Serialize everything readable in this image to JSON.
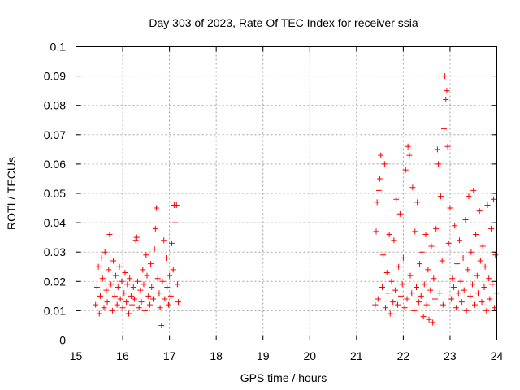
{
  "chart_data": {
    "type": "scatter",
    "title": "Day 303 of 2023, Rate Of TEC Index for receiver ssia",
    "xlabel": "GPS time / hours",
    "ylabel": "ROTI / TECUs",
    "xlim": [
      15,
      24
    ],
    "ylim": [
      0,
      0.1
    ],
    "x_ticks": [
      "15",
      "16",
      "17",
      "18",
      "19",
      "20",
      "21",
      "22",
      "23",
      "24"
    ],
    "y_ticks": [
      "0",
      "0.01",
      "0.02",
      "0.03",
      "0.04",
      "0.05",
      "0.06",
      "0.07",
      "0.08",
      "0.09",
      "0.1"
    ],
    "grid": true,
    "marker": "plus",
    "color": "#ff0000",
    "series": [
      {
        "points": [
          [
            15.42,
            0.012
          ],
          [
            15.45,
            0.018
          ],
          [
            15.48,
            0.025
          ],
          [
            15.5,
            0.009
          ],
          [
            15.52,
            0.015
          ],
          [
            15.55,
            0.028
          ],
          [
            15.57,
            0.021
          ],
          [
            15.6,
            0.011
          ],
          [
            15.62,
            0.03
          ],
          [
            15.65,
            0.017
          ],
          [
            15.67,
            0.013
          ],
          [
            15.7,
            0.024
          ],
          [
            15.72,
            0.036
          ],
          [
            15.75,
            0.019
          ],
          [
            15.78,
            0.01
          ],
          [
            15.8,
            0.027
          ],
          [
            15.83,
            0.015
          ],
          [
            15.85,
            0.022
          ],
          [
            15.88,
            0.012
          ],
          [
            15.9,
            0.018
          ],
          [
            15.93,
            0.025
          ],
          [
            15.95,
            0.014
          ],
          [
            15.98,
            0.02
          ],
          [
            16.0,
            0.011
          ],
          [
            16.03,
            0.016
          ],
          [
            16.05,
            0.023
          ],
          [
            16.08,
            0.013
          ],
          [
            16.1,
            0.019
          ],
          [
            16.13,
            0.009
          ],
          [
            16.15,
            0.021
          ],
          [
            16.18,
            0.015
          ],
          [
            16.2,
            0.012
          ],
          [
            16.23,
            0.018
          ],
          [
            16.25,
            0.014
          ],
          [
            16.28,
            0.034
          ],
          [
            16.3,
            0.035
          ],
          [
            16.32,
            0.02
          ],
          [
            16.35,
            0.011
          ],
          [
            16.38,
            0.017
          ],
          [
            16.4,
            0.013
          ],
          [
            16.43,
            0.024
          ],
          [
            16.45,
            0.019
          ],
          [
            16.48,
            0.01
          ],
          [
            16.5,
            0.029
          ],
          [
            16.52,
            0.022
          ],
          [
            16.55,
            0.015
          ],
          [
            16.58,
            0.012
          ],
          [
            16.6,
            0.026
          ],
          [
            16.62,
            0.018
          ],
          [
            16.65,
            0.014
          ],
          [
            16.68,
            0.031
          ],
          [
            16.7,
            0.038
          ],
          [
            16.72,
            0.045
          ],
          [
            16.75,
            0.021
          ],
          [
            16.78,
            0.016
          ],
          [
            16.8,
            0.011
          ],
          [
            16.83,
            0.005
          ],
          [
            16.85,
            0.02
          ],
          [
            16.88,
            0.034
          ],
          [
            16.9,
            0.014
          ],
          [
            16.93,
            0.028
          ],
          [
            16.95,
            0.018
          ],
          [
            16.98,
            0.012
          ],
          [
            17.0,
            0.022
          ],
          [
            17.03,
            0.015
          ],
          [
            17.05,
            0.033
          ],
          [
            17.08,
            0.024
          ],
          [
            17.1,
            0.046
          ],
          [
            17.12,
            0.04
          ],
          [
            17.15,
            0.046
          ],
          [
            17.17,
            0.019
          ],
          [
            17.19,
            0.013
          ],
          [
            21.4,
            0.012
          ],
          [
            21.42,
            0.037
          ],
          [
            21.44,
            0.047
          ],
          [
            21.46,
            0.014
          ],
          [
            21.48,
            0.051
          ],
          [
            21.5,
            0.055
          ],
          [
            21.52,
            0.063
          ],
          [
            21.55,
            0.018
          ],
          [
            21.57,
            0.029
          ],
          [
            21.6,
            0.06
          ],
          [
            21.62,
            0.011
          ],
          [
            21.65,
            0.023
          ],
          [
            21.67,
            0.016
          ],
          [
            21.7,
            0.036
          ],
          [
            21.72,
            0.009
          ],
          [
            21.75,
            0.02
          ],
          [
            21.78,
            0.013
          ],
          [
            21.8,
            0.034
          ],
          [
            21.83,
            0.017
          ],
          [
            21.85,
            0.048
          ],
          [
            21.88,
            0.012
          ],
          [
            21.9,
            0.025
          ],
          [
            21.93,
            0.043
          ],
          [
            21.95,
            0.015
          ],
          [
            21.98,
            0.019
          ],
          [
            22.0,
            0.028
          ],
          [
            22.03,
            0.011
          ],
          [
            22.05,
            0.058
          ],
          [
            22.08,
            0.014
          ],
          [
            22.1,
            0.066
          ],
          [
            22.13,
            0.063
          ],
          [
            22.15,
            0.022
          ],
          [
            22.18,
            0.016
          ],
          [
            22.2,
            0.052
          ],
          [
            22.23,
            0.01
          ],
          [
            22.25,
            0.037
          ],
          [
            22.28,
            0.018
          ],
          [
            22.3,
            0.047
          ],
          [
            22.33,
            0.013
          ],
          [
            22.35,
            0.026
          ],
          [
            22.38,
            0.015
          ],
          [
            22.4,
            0.03
          ],
          [
            22.43,
            0.008
          ],
          [
            22.45,
            0.019
          ],
          [
            22.48,
            0.036
          ],
          [
            22.5,
            0.012
          ],
          [
            22.53,
            0.024
          ],
          [
            22.55,
            0.007
          ],
          [
            22.58,
            0.017
          ],
          [
            22.6,
            0.032
          ],
          [
            22.63,
            0.006
          ],
          [
            22.65,
            0.021
          ],
          [
            22.68,
            0.014
          ],
          [
            22.7,
            0.038
          ],
          [
            22.73,
            0.065
          ],
          [
            22.75,
            0.06
          ],
          [
            22.78,
            0.016
          ],
          [
            22.8,
            0.049
          ],
          [
            22.83,
            0.027
          ],
          [
            22.85,
            0.012
          ],
          [
            22.87,
            0.072
          ],
          [
            22.89,
            0.09
          ],
          [
            22.91,
            0.082
          ],
          [
            22.93,
            0.085
          ],
          [
            22.95,
            0.066
          ],
          [
            22.97,
            0.033
          ],
          [
            23.0,
            0.045
          ],
          [
            23.03,
            0.014
          ],
          [
            23.05,
            0.021
          ],
          [
            23.08,
            0.018
          ],
          [
            23.1,
            0.039
          ],
          [
            23.13,
            0.011
          ],
          [
            23.15,
            0.026
          ],
          [
            23.18,
            0.016
          ],
          [
            23.2,
            0.034
          ],
          [
            23.23,
            0.02
          ],
          [
            23.25,
            0.013
          ],
          [
            23.28,
            0.028
          ],
          [
            23.3,
            0.017
          ],
          [
            23.33,
            0.041
          ],
          [
            23.35,
            0.01
          ],
          [
            23.38,
            0.024
          ],
          [
            23.4,
            0.049
          ],
          [
            23.43,
            0.015
          ],
          [
            23.45,
            0.03
          ],
          [
            23.48,
            0.019
          ],
          [
            23.5,
            0.051
          ],
          [
            23.53,
            0.012
          ],
          [
            23.55,
            0.036
          ],
          [
            23.58,
            0.022
          ],
          [
            23.6,
            0.016
          ],
          [
            23.63,
            0.044
          ],
          [
            23.65,
            0.027
          ],
          [
            23.68,
            0.013
          ],
          [
            23.7,
            0.032
          ],
          [
            23.73,
            0.018
          ],
          [
            23.75,
            0.025
          ],
          [
            23.78,
            0.01
          ],
          [
            23.8,
            0.046
          ],
          [
            23.83,
            0.021
          ],
          [
            23.85,
            0.014
          ],
          [
            23.88,
            0.038
          ],
          [
            23.9,
            0.019
          ],
          [
            23.93,
            0.048
          ],
          [
            23.95,
            0.011
          ],
          [
            23.97,
            0.029
          ],
          [
            23.99,
            0.016
          ]
        ]
      }
    ]
  }
}
